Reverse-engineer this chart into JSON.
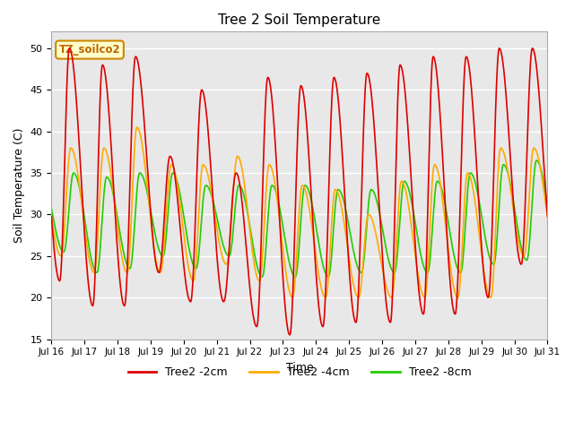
{
  "title": "Tree 2 Soil Temperature",
  "xlabel": "Time",
  "ylabel": "Soil Temperature (C)",
  "ylim": [
    15,
    52
  ],
  "xlim": [
    0,
    360
  ],
  "bg_color": "#e8e8e8",
  "legend_label": "TZ_soilco2",
  "series": {
    "Tree2 -2cm": {
      "color": "#dd0000",
      "lw": 1.2
    },
    "Tree2 -4cm": {
      "color": "#ffaa00",
      "lw": 1.2
    },
    "Tree2 -8cm": {
      "color": "#22cc00",
      "lw": 1.2
    }
  },
  "tick_labels": [
    "Jul 16",
    "Jul 17",
    "Jul 18",
    "Jul 19",
    "Jul 20",
    "Jul 21",
    "Jul 22",
    "Jul 23",
    "Jul 24",
    "Jul 25",
    "Jul 26",
    "Jul 27",
    "Jul 28",
    "Jul 29",
    "Jul 30",
    "Jul 31"
  ],
  "tick_positions": [
    0,
    24,
    48,
    72,
    96,
    120,
    144,
    168,
    192,
    216,
    240,
    264,
    288,
    312,
    336,
    360
  ],
  "yticks": [
    15,
    20,
    25,
    30,
    35,
    40,
    45,
    50
  ],
  "red_peaks": [
    50,
    48,
    49,
    37,
    45,
    35,
    46.5,
    45.5,
    46.5,
    47,
    48,
    49,
    49,
    50,
    50
  ],
  "red_troughs": [
    22,
    19,
    19,
    23,
    19.5,
    19.5,
    16.5,
    15.5,
    16.5,
    17,
    17,
    18,
    18,
    20,
    24
  ],
  "red_peak_hr": [
    13,
    13,
    13,
    14,
    13,
    14,
    13,
    13,
    13,
    13,
    13,
    13,
    13,
    13,
    13
  ],
  "red_trough_hr": [
    6,
    6,
    5,
    6,
    5,
    5,
    5,
    5,
    5,
    5,
    6,
    6,
    5,
    5,
    5
  ],
  "ora_peaks": [
    38,
    38,
    40.5,
    36,
    36,
    37,
    36,
    33.5,
    33,
    30,
    34,
    36,
    35,
    38,
    38
  ],
  "ora_troughs": [
    25,
    23,
    23,
    23,
    22,
    24,
    22,
    20,
    20,
    20,
    20,
    20,
    20,
    20,
    25
  ],
  "ora_peak_hr": [
    14,
    14,
    14,
    15,
    14,
    15,
    14,
    14,
    14,
    14,
    14,
    14,
    14,
    14,
    14
  ],
  "ora_trough_hr": [
    7,
    7,
    7,
    7,
    7,
    7,
    7,
    7,
    7,
    7,
    7,
    7,
    7,
    7,
    7
  ],
  "grn_peaks": [
    35,
    34.5,
    35,
    35,
    33.5,
    33.5,
    33.5,
    33.5,
    33,
    33,
    34,
    34,
    35,
    36,
    36.5
  ],
  "grn_troughs": [
    25.5,
    23,
    23.5,
    25,
    23.5,
    25,
    22.5,
    22.5,
    22.5,
    23,
    23,
    23,
    23,
    24,
    24.5
  ],
  "grn_peak_hr": [
    16,
    16,
    16,
    16,
    16,
    16,
    16,
    16,
    16,
    16,
    16,
    16,
    16,
    16,
    16
  ],
  "grn_trough_hr": [
    9,
    9,
    9,
    9,
    9,
    9,
    9,
    9,
    9,
    9,
    9,
    9,
    9,
    9,
    9
  ]
}
